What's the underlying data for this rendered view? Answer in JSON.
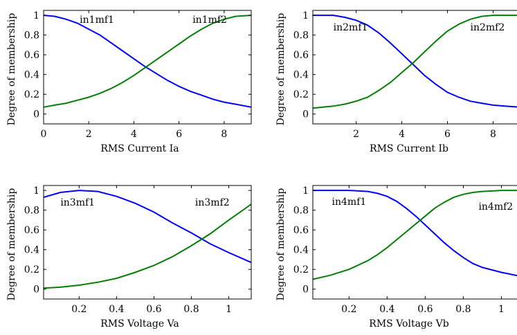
{
  "chart_data": [
    {
      "type": "line",
      "xlabel": "RMS Current Ia",
      "ylabel": "Degree of membership",
      "xlim": [
        0,
        9.2
      ],
      "ylim": [
        -0.1,
        1.05
      ],
      "xticks": [
        0,
        2,
        4,
        6,
        8
      ],
      "yticks": [
        0,
        0.2,
        0.4,
        0.6,
        0.8,
        1
      ],
      "grid": false,
      "series": [
        {
          "name": "in1mf1",
          "color": "#0000ff",
          "x": [
            0,
            0.5,
            1,
            1.5,
            2,
            2.5,
            3,
            3.5,
            4,
            4.5,
            5,
            5.5,
            6,
            6.5,
            7,
            7.5,
            8,
            8.5,
            9.2
          ],
          "y": [
            1.0,
            0.99,
            0.96,
            0.92,
            0.86,
            0.8,
            0.72,
            0.64,
            0.56,
            0.48,
            0.41,
            0.34,
            0.28,
            0.23,
            0.19,
            0.15,
            0.12,
            0.1,
            0.07
          ]
        },
        {
          "name": "in1mf2",
          "color": "#008000",
          "x": [
            0,
            0.5,
            1,
            1.5,
            2,
            2.5,
            3,
            3.5,
            4,
            4.5,
            5,
            5.5,
            6,
            6.5,
            7,
            7.5,
            8,
            8.5,
            9.2
          ],
          "y": [
            0.07,
            0.09,
            0.11,
            0.14,
            0.17,
            0.21,
            0.26,
            0.32,
            0.39,
            0.47,
            0.55,
            0.63,
            0.71,
            0.79,
            0.86,
            0.92,
            0.96,
            0.99,
            1.0
          ]
        }
      ],
      "annotations": [
        {
          "text": "in1mf1",
          "x": 1.6,
          "y": 0.96
        },
        {
          "text": "in1mf2",
          "x": 6.6,
          "y": 0.96
        }
      ]
    },
    {
      "type": "line",
      "xlabel": "RMS Current Ib",
      "ylabel": "Degree of membership",
      "xlim": [
        0.1,
        9.2
      ],
      "ylim": [
        -0.1,
        1.05
      ],
      "xticks": [
        2,
        4,
        6,
        8
      ],
      "yticks": [
        0,
        0.2,
        0.4,
        0.6,
        0.8,
        1
      ],
      "grid": false,
      "series": [
        {
          "name": "in2mf1",
          "color": "#0000ff",
          "x": [
            0.1,
            1,
            1.5,
            2,
            2.5,
            3,
            3.5,
            4,
            4.5,
            5,
            5.5,
            6,
            6.5,
            7,
            7.5,
            8,
            8.5,
            9.2
          ],
          "y": [
            1.0,
            1.0,
            0.98,
            0.95,
            0.9,
            0.82,
            0.72,
            0.61,
            0.5,
            0.39,
            0.3,
            0.22,
            0.17,
            0.13,
            0.11,
            0.09,
            0.08,
            0.07
          ]
        },
        {
          "name": "in2mf2",
          "color": "#008000",
          "x": [
            0.1,
            1,
            1.5,
            2,
            2.5,
            3,
            3.5,
            4,
            4.5,
            5,
            5.5,
            6,
            6.5,
            7,
            7.5,
            8,
            8.5,
            9.2
          ],
          "y": [
            0.06,
            0.08,
            0.1,
            0.13,
            0.17,
            0.24,
            0.32,
            0.42,
            0.52,
            0.63,
            0.74,
            0.84,
            0.91,
            0.96,
            0.99,
            1.0,
            1.0,
            1.0
          ]
        }
      ],
      "annotations": [
        {
          "text": "in2mf1",
          "x": 1.0,
          "y": 0.88
        },
        {
          "text": "in2mf2",
          "x": 7.0,
          "y": 0.88
        }
      ]
    },
    {
      "type": "line",
      "xlabel": "RMS Voltage Va",
      "ylabel": "Degree of membership",
      "xlim": [
        0.01,
        1.12
      ],
      "ylim": [
        -0.1,
        1.05
      ],
      "xticks": [
        0.2,
        0.4,
        0.6,
        0.8,
        1
      ],
      "yticks": [
        0,
        0.2,
        0.4,
        0.6,
        0.8,
        1
      ],
      "grid": false,
      "series": [
        {
          "name": "in3mf1",
          "color": "#0000ff",
          "x": [
            0.01,
            0.1,
            0.2,
            0.3,
            0.4,
            0.5,
            0.6,
            0.7,
            0.8,
            0.9,
            1.0,
            1.12
          ],
          "y": [
            0.93,
            0.98,
            1.0,
            0.99,
            0.94,
            0.87,
            0.78,
            0.67,
            0.57,
            0.46,
            0.37,
            0.27
          ]
        },
        {
          "name": "in3mf2",
          "color": "#008000",
          "x": [
            0.01,
            0.1,
            0.2,
            0.3,
            0.4,
            0.5,
            0.6,
            0.7,
            0.8,
            0.9,
            1.0,
            1.12
          ],
          "y": [
            0.01,
            0.02,
            0.04,
            0.07,
            0.11,
            0.17,
            0.24,
            0.33,
            0.44,
            0.56,
            0.7,
            0.86
          ]
        }
      ],
      "annotations": [
        {
          "text": "in3mf1",
          "x": 0.1,
          "y": 0.88
        },
        {
          "text": "in3mf2",
          "x": 0.82,
          "y": 0.88
        }
      ]
    },
    {
      "type": "line",
      "xlabel": "RMS Voltage Vb",
      "ylabel": "Degree of membership",
      "xlim": [
        0.01,
        1.1
      ],
      "ylim": [
        -0.1,
        1.05
      ],
      "xticks": [
        0.2,
        0.4,
        0.6,
        0.8,
        1
      ],
      "yticks": [
        0,
        0.2,
        0.4,
        0.6,
        0.8,
        1
      ],
      "grid": false,
      "series": [
        {
          "name": "in4mf1",
          "color": "#0000ff",
          "x": [
            0.01,
            0.1,
            0.2,
            0.3,
            0.35,
            0.4,
            0.45,
            0.5,
            0.55,
            0.6,
            0.65,
            0.7,
            0.75,
            0.8,
            0.85,
            0.9,
            1.0,
            1.1
          ],
          "y": [
            1.0,
            1.0,
            1.0,
            0.99,
            0.97,
            0.94,
            0.89,
            0.82,
            0.74,
            0.65,
            0.56,
            0.47,
            0.39,
            0.32,
            0.26,
            0.22,
            0.17,
            0.13
          ]
        },
        {
          "name": "in4mf2",
          "color": "#008000",
          "x": [
            0.01,
            0.1,
            0.2,
            0.3,
            0.35,
            0.4,
            0.45,
            0.5,
            0.55,
            0.6,
            0.65,
            0.7,
            0.75,
            0.8,
            0.85,
            0.9,
            1.0,
            1.1
          ],
          "y": [
            0.1,
            0.14,
            0.2,
            0.29,
            0.35,
            0.42,
            0.5,
            0.58,
            0.66,
            0.74,
            0.82,
            0.88,
            0.93,
            0.96,
            0.98,
            0.99,
            1.0,
            1.0
          ]
        }
      ],
      "annotations": [
        {
          "text": "in4mf1",
          "x": 0.11,
          "y": 0.89
        },
        {
          "text": "in4mf2",
          "x": 0.88,
          "y": 0.84
        }
      ]
    }
  ]
}
